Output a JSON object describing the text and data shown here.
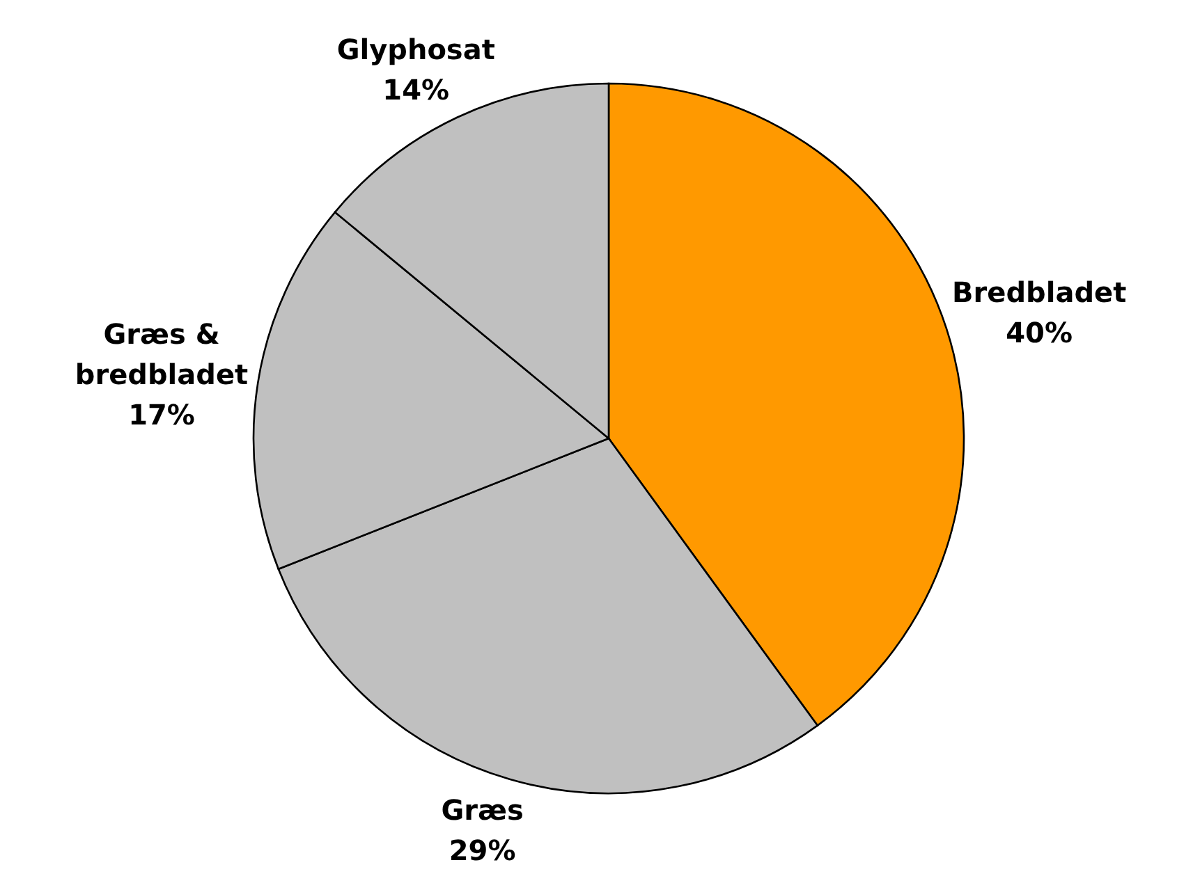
{
  "chart_data": {
    "type": "pie",
    "categories": [
      "Bredbladet",
      "Græs",
      "Græs & bredbladet",
      "Glyphosat"
    ],
    "values": [
      40,
      29,
      17,
      14
    ],
    "value_labels": [
      "40%",
      "29%",
      "17%",
      "14%"
    ],
    "colors": [
      "#ff9900",
      "#c0c0c0",
      "#c0c0c0",
      "#c0c0c0"
    ],
    "legend": false
  }
}
